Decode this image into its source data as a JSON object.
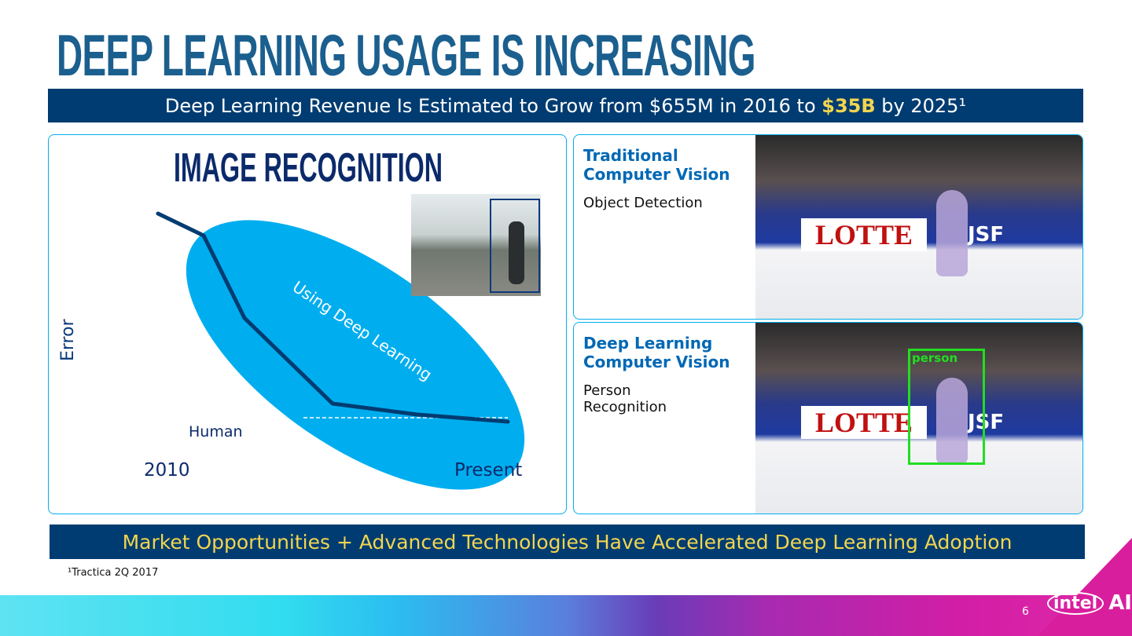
{
  "title": "DEEP LEARNING USAGE IS INCREASING",
  "banner_top": {
    "before": "Deep Learning Revenue Is Estimated to Grow from $655M in 2016 to ",
    "highlight": "$35B",
    "after": " by 2025¹"
  },
  "left_panel": {
    "title": "IMAGE RECOGNITION",
    "y_label": "Error",
    "x_start": "2010",
    "x_end": "Present",
    "region_label": "Using Deep Learning",
    "human_label": "Human"
  },
  "traditional": {
    "title_line1": "Traditional",
    "title_line2": "Computer Vision",
    "subtitle": "Object Detection",
    "photo_text": {
      "sign": "LOTTE",
      "logo": "JSF"
    }
  },
  "deep": {
    "title_line1": "Deep Learning",
    "title_line2": "Computer Vision",
    "subtitle_line1": "Person",
    "subtitle_line2": "Recognition",
    "detection_label": "person",
    "photo_text": {
      "sign": "LOTTE",
      "logo": "JSF"
    }
  },
  "banner_bottom": "Market Opportunities + Advanced Technologies Have Accelerated Deep Learning Adoption",
  "footnote": "¹Tractica 2Q 2017",
  "page_number": "6",
  "brand": {
    "logo_text": "intel",
    "product": "AI"
  },
  "colors": {
    "title": "#1b5f8f",
    "banner": "#003c71",
    "highlight": "#f3d54e",
    "ellipse": "#00aeef",
    "line": "#003c71",
    "detection_box": "#22dd22"
  }
}
